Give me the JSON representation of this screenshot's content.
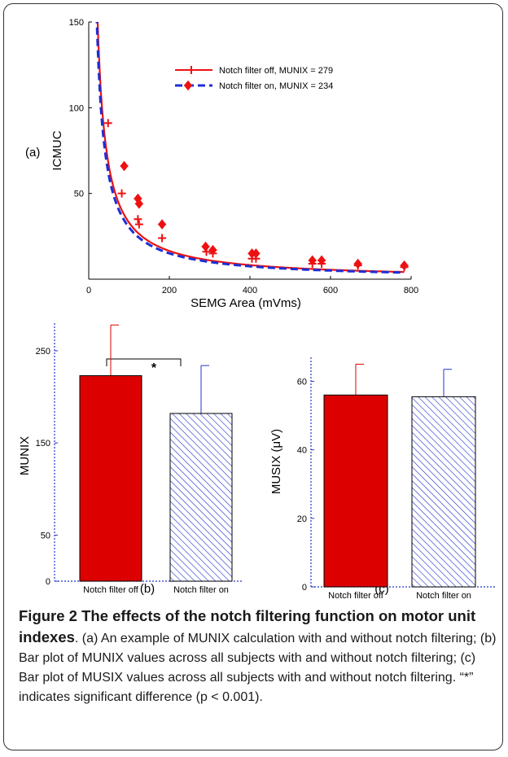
{
  "figure": {
    "caption_title": "Figure 2 The effects of the notch filtering function on motor unit indexes",
    "caption_text": ". (a) An example of MUNIX calculation with and without notch filtering; (b) Bar plot of MUNIX values across all subjects with and without notch filtering; (c) Bar plot of MUSIX values across all subjects with and without notch filtering. “*” indicates significant difference (p < 0.001).",
    "panel_a_label": "(a)",
    "panel_b_label": "(b)",
    "panel_c_label": "(c)",
    "significance_marker": "*"
  },
  "colors": {
    "red": "#ee1111",
    "blue": "#1c2fd6",
    "bar_red": "#dd0000",
    "axis_blue": "#2233cc"
  },
  "chart_data": [
    {
      "type": "line",
      "xlabel": "SEMG Area (mVms)",
      "ylabel": "ICMUC",
      "xlim": [
        0,
        800
      ],
      "ylim": [
        0,
        150
      ],
      "xticks": [
        0,
        200,
        400,
        600,
        800
      ],
      "yticks": [
        50,
        100,
        150
      ],
      "legend_position": "top-right",
      "series": [
        {
          "name": "Notch filter off, MUNIX = 279",
          "style": "solid",
          "marker": "plus",
          "curve_k": 3300,
          "points": [
            [
              48,
              91
            ],
            [
              82,
              50
            ],
            [
              122,
              35
            ],
            [
              125,
              32
            ],
            [
              182,
              24
            ],
            [
              292,
              16
            ],
            [
              308,
              15
            ],
            [
              405,
              12
            ],
            [
              415,
              12
            ],
            [
              555,
              9
            ],
            [
              578,
              9
            ],
            [
              668,
              8
            ],
            [
              783,
              7
            ]
          ]
        },
        {
          "name": "Notch filter on, MUNIX = 234",
          "style": "dashed",
          "marker": "diamond",
          "curve_k": 3020,
          "points": [
            [
              88,
              66
            ],
            [
              122,
              47
            ],
            [
              125,
              44
            ],
            [
              182,
              32
            ],
            [
              290,
              19
            ],
            [
              308,
              17
            ],
            [
              405,
              15
            ],
            [
              415,
              15
            ],
            [
              555,
              11
            ],
            [
              578,
              11
            ],
            [
              668,
              9
            ],
            [
              783,
              8
            ]
          ]
        }
      ]
    },
    {
      "type": "bar",
      "categories": [
        "Notch filter off",
        "Notch filter on"
      ],
      "values": [
        223,
        182
      ],
      "errors": [
        55,
        52
      ],
      "ylabel": "MUNIX",
      "ylim": [
        0,
        280
      ],
      "yticks": [
        0,
        50,
        150,
        250
      ],
      "fills": [
        "solid",
        "hatched"
      ]
    },
    {
      "type": "bar",
      "categories": [
        "Notch filter off",
        "Notch filter on"
      ],
      "values": [
        56,
        55.5
      ],
      "errors": [
        9,
        8
      ],
      "ylabel": "MUSIX (μV)",
      "ylim": [
        0,
        67
      ],
      "yticks": [
        0,
        20,
        40,
        60
      ],
      "fills": [
        "solid",
        "hatched"
      ]
    }
  ]
}
